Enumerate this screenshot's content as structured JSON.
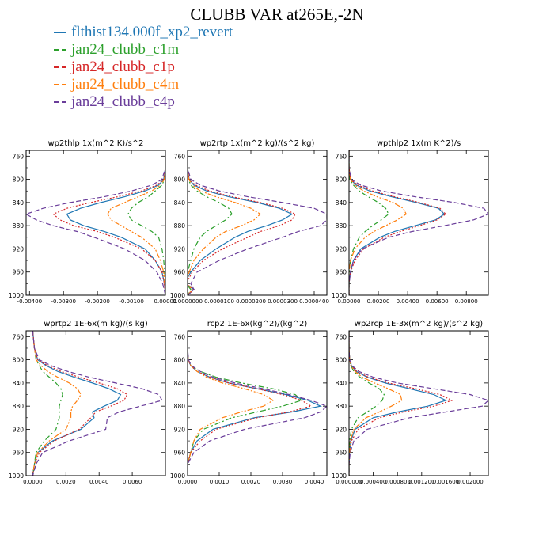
{
  "title": "CLUBB VAR at265E,-2N",
  "colors": {
    "flthist134.000f_xp2_revert": "#1f77b4",
    "jan24_clubb_c1m": "#2ca02c",
    "jan24_clubb_c1p": "#d62728",
    "jan24_clubb_c4m": "#ff7f0e",
    "jan24_clubb_c4p": "#6a3d9a"
  },
  "legend": [
    {
      "name": "flthist134.000f_xp2_revert",
      "style": "solid"
    },
    {
      "name": "jan24_clubb_c1m",
      "style": "dash-dot"
    },
    {
      "name": "jan24_clubb_c1p",
      "style": "dotted"
    },
    {
      "name": "jan24_clubb_c4m",
      "style": "dash-dot-dot"
    },
    {
      "name": "jan24_clubb_c4p",
      "style": "dashed"
    }
  ],
  "chart_data": [
    {
      "type": "line",
      "title": "wp2thlp   1x(m^2 K)/s^2",
      "ylim": [
        1000,
        750
      ],
      "yticks": [
        760,
        800,
        840,
        880,
        920,
        960,
        1000
      ],
      "xlim": [
        -0.0041,
        0.0
      ],
      "xticks": [
        -0.004,
        -0.003,
        -0.002,
        -0.001,
        0.0
      ],
      "xticklabels": [
        "-0.00400",
        "-0.00300",
        "-0.00200",
        "-0.00100",
        "0.00000"
      ],
      "y": [
        750,
        780,
        800,
        810,
        820,
        830,
        840,
        850,
        860,
        870,
        880,
        890,
        900,
        920,
        940,
        960,
        980,
        1000
      ],
      "series": [
        {
          "name": "flthist134.000f_xp2_revert",
          "x": [
            0,
            0,
            -5e-05,
            -0.0002,
            -0.0006,
            -0.0012,
            -0.0019,
            -0.0025,
            -0.0029,
            -0.0028,
            -0.0024,
            -0.0018,
            -0.0013,
            -0.0006,
            -0.0003,
            -0.0001,
            -3e-05,
            0
          ]
        },
        {
          "name": "jan24_clubb_c1m",
          "x": [
            0,
            0,
            -3e-05,
            -0.0001,
            -0.0003,
            -0.0005,
            -0.0008,
            -0.001,
            -0.0011,
            -0.001,
            -0.0007,
            -0.0004,
            -0.0002,
            -0.0001,
            -5e-05,
            -2e-05,
            -1e-05,
            0
          ]
        },
        {
          "name": "jan24_clubb_c1p",
          "x": [
            0,
            0,
            -5e-05,
            -0.00025,
            -0.0007,
            -0.0014,
            -0.0022,
            -0.0029,
            -0.0033,
            -0.0031,
            -0.0027,
            -0.002,
            -0.0015,
            -0.0007,
            -0.0003,
            -0.0001,
            -3e-05,
            0
          ]
        },
        {
          "name": "jan24_clubb_c4m",
          "x": [
            0,
            0,
            -3e-05,
            -0.00015,
            -0.0004,
            -0.0008,
            -0.0012,
            -0.0016,
            -0.0017,
            -0.0016,
            -0.0013,
            -0.001,
            -0.0007,
            -0.0003,
            -0.00015,
            -5e-05,
            -2e-05,
            0
          ]
        },
        {
          "name": "jan24_clubb_c4p",
          "x": [
            0,
            0,
            -0.0001,
            -0.0004,
            -0.001,
            -0.0018,
            -0.0028,
            -0.0036,
            -0.0041,
            -0.0038,
            -0.0033,
            -0.0026,
            -0.0021,
            -0.0012,
            -0.0006,
            -0.00025,
            -8e-05,
            0
          ]
        }
      ]
    },
    {
      "type": "line",
      "title": "wp2rtp   1x(m^2 kg)/(s^2 kg)",
      "ylim": [
        1000,
        750
      ],
      "yticks": [
        760,
        800,
        840,
        880,
        920,
        960,
        1000
      ],
      "xlim": [
        0.0,
        4.4e-05
      ],
      "xticks": [
        0,
        1e-05,
        2e-05,
        3e-05,
        4e-05
      ],
      "xticklabels": [
        "0.0000000",
        "0.0000100",
        "0.0000200",
        "0.0000300",
        "0.0000400"
      ],
      "y": [
        750,
        780,
        800,
        810,
        820,
        830,
        840,
        850,
        860,
        870,
        880,
        890,
        900,
        920,
        940,
        960,
        980,
        990,
        1000
      ],
      "series": [
        {
          "name": "flthist134.000f_xp2_revert",
          "x": [
            0,
            0,
            5e-07,
            2e-06,
            6e-06,
            1.3e-05,
            2.2e-05,
            2.9e-05,
            3.3e-05,
            3e-05,
            2.5e-05,
            1.9e-05,
            1.5e-05,
            9e-06,
            4e-06,
            1e-06,
            -1e-06,
            2e-06,
            0
          ]
        },
        {
          "name": "jan24_clubb_c1m",
          "x": [
            0,
            0,
            3e-07,
            1e-06,
            3e-06,
            6e-06,
            1e-05,
            1.3e-05,
            1.4e-05,
            1.2e-05,
            9e-06,
            6e-06,
            4e-06,
            2e-06,
            1e-06,
            0,
            -5e-07,
            1e-06,
            0
          ]
        },
        {
          "name": "jan24_clubb_c1p",
          "x": [
            0,
            0,
            5e-07,
            2.5e-06,
            7e-06,
            1.4e-05,
            2.3e-05,
            3e-05,
            3.4e-05,
            3.3e-05,
            2.9e-05,
            2.3e-05,
            1.9e-05,
            1.1e-05,
            5e-06,
            1.5e-06,
            -5e-07,
            2e-06,
            0
          ]
        },
        {
          "name": "jan24_clubb_c4m",
          "x": [
            0,
            0,
            4e-07,
            1.5e-06,
            4e-06,
            9e-06,
            1.5e-05,
            2e-05,
            2.3e-05,
            2.1e-05,
            1.7e-05,
            1.2e-05,
            9e-06,
            5e-06,
            2e-06,
            5e-07,
            -5e-07,
            1.5e-06,
            0
          ]
        },
        {
          "name": "jan24_clubb_c4p",
          "x": [
            0,
            0,
            1e-06,
            4e-06,
            1e-05,
            1.9e-05,
            3e-05,
            4e-05,
            4.4e-05,
            4.4e-05,
            4.2e-05,
            3.5e-05,
            3e-05,
            1.9e-05,
            1e-05,
            3e-06,
            1e-06,
            2e-06,
            0
          ]
        }
      ]
    },
    {
      "type": "line",
      "title": "wpthlp2   1x(m K^2)/s",
      "ylim": [
        1000,
        750
      ],
      "yticks": [
        760,
        800,
        840,
        880,
        920,
        960,
        1000
      ],
      "xlim": [
        0.0,
        0.0095
      ],
      "xticks": [
        0,
        0.002,
        0.004,
        0.006,
        0.008
      ],
      "xticklabels": [
        "0.00000",
        "0.00200",
        "0.00400",
        "0.00600",
        "0.00800"
      ],
      "y": [
        750,
        780,
        800,
        810,
        820,
        830,
        840,
        850,
        860,
        870,
        880,
        890,
        900,
        920,
        940,
        960,
        980,
        1000
      ],
      "series": [
        {
          "name": "flthist134.000f_xp2_revert",
          "x": [
            0,
            0,
            0.0001,
            0.0005,
            0.0014,
            0.0029,
            0.0046,
            0.0061,
            0.0065,
            0.0059,
            0.0045,
            0.0031,
            0.0021,
            0.0008,
            0.0003,
            0.0001,
            0,
            0
          ]
        },
        {
          "name": "jan24_clubb_c1m",
          "x": [
            0,
            0,
            5e-05,
            0.0003,
            0.0007,
            0.0013,
            0.002,
            0.0025,
            0.0027,
            0.0022,
            0.0016,
            0.0011,
            0.0007,
            0.0003,
            0.0001,
            0,
            0,
            0
          ]
        },
        {
          "name": "jan24_clubb_c1p",
          "x": [
            0,
            0,
            0.0001,
            0.0006,
            0.0016,
            0.0031,
            0.0048,
            0.0062,
            0.0066,
            0.006,
            0.0048,
            0.0035,
            0.0024,
            0.001,
            0.0004,
            0.0001,
            0,
            0
          ]
        },
        {
          "name": "jan24_clubb_c4m",
          "x": [
            0,
            0,
            0.0001,
            0.0004,
            0.001,
            0.0019,
            0.003,
            0.0037,
            0.0039,
            0.0033,
            0.0025,
            0.0017,
            0.0011,
            0.0004,
            0.0001,
            0,
            0,
            0
          ]
        },
        {
          "name": "jan24_clubb_c4p",
          "x": [
            0,
            0,
            0.00015,
            0.0008,
            0.0022,
            0.0045,
            0.0072,
            0.0092,
            0.0095,
            0.0085,
            0.0065,
            0.0043,
            0.0027,
            0.0009,
            0.0003,
            0.0001,
            0,
            0
          ]
        }
      ]
    },
    {
      "type": "line",
      "title": "wprtp2   1E-6x(m kg)/(s kg)",
      "ylim": [
        1000,
        750
      ],
      "yticks": [
        760,
        800,
        840,
        880,
        920,
        960,
        1000
      ],
      "xlim": [
        -0.0004,
        0.008
      ],
      "xticks": [
        0,
        0.002,
        0.004,
        0.006
      ],
      "xticklabels": [
        "0.0000",
        "0.0020",
        "0.0040",
        "0.0060"
      ],
      "y": [
        750,
        780,
        800,
        810,
        820,
        830,
        840,
        850,
        860,
        870,
        880,
        890,
        900,
        920,
        940,
        960,
        980,
        1000
      ],
      "series": [
        {
          "name": "flthist134.000f_xp2_revert",
          "x": [
            0,
            0.0001,
            0.0003,
            0.0008,
            0.0015,
            0.0025,
            0.0036,
            0.0046,
            0.0053,
            0.0051,
            0.0043,
            0.0036,
            0.0037,
            0.0029,
            0.0012,
            0.0003,
            0.0001,
            0
          ]
        },
        {
          "name": "jan24_clubb_c1m",
          "x": [
            0,
            0.0001,
            0.0002,
            0.0004,
            0.0006,
            0.001,
            0.0014,
            0.0017,
            0.0018,
            0.0017,
            0.0016,
            0.0016,
            0.0016,
            0.0014,
            0.0007,
            0.0002,
            0.0001,
            0
          ]
        },
        {
          "name": "jan24_clubb_c1p",
          "x": [
            0,
            0.0001,
            0.0003,
            0.0009,
            0.0017,
            0.0028,
            0.004,
            0.0051,
            0.0057,
            0.0055,
            0.0047,
            0.0038,
            0.0035,
            0.0028,
            0.0013,
            0.0004,
            0.0001,
            0
          ]
        },
        {
          "name": "jan24_clubb_c4m",
          "x": [
            0,
            0.0001,
            0.0002,
            0.0005,
            0.0009,
            0.0015,
            0.0022,
            0.0027,
            0.0029,
            0.0027,
            0.0024,
            0.0023,
            0.0023,
            0.002,
            0.001,
            0.0003,
            0.0001,
            0
          ]
        },
        {
          "name": "jan24_clubb_c4p",
          "x": [
            0,
            0.0001,
            0.0004,
            0.0011,
            0.0021,
            0.0034,
            0.005,
            0.0066,
            0.0076,
            0.0078,
            0.0065,
            0.0052,
            0.0045,
            0.0044,
            0.0022,
            0.0006,
            0.0002,
            0
          ]
        }
      ]
    },
    {
      "type": "line",
      "title": "rcp2   1E-6x(kg^2)/(kg^2)",
      "ylim": [
        1000,
        750
      ],
      "yticks": [
        760,
        800,
        840,
        880,
        920,
        960,
        1000
      ],
      "xlim": [
        0.0,
        0.0044
      ],
      "xticks": [
        0,
        0.001,
        0.002,
        0.003,
        0.004
      ],
      "xticklabels": [
        "0.0000",
        "0.0010",
        "0.0020",
        "0.0030",
        "0.0040"
      ],
      "y": [
        750,
        780,
        800,
        810,
        820,
        830,
        840,
        850,
        860,
        870,
        880,
        890,
        900,
        920,
        940,
        960,
        980,
        1000
      ],
      "series": [
        {
          "name": "flthist134.000f_xp2_revert",
          "x": [
            0,
            0,
            2e-05,
            0.0001,
            0.0003,
            0.0007,
            0.0013,
            0.0022,
            0.0031,
            0.0038,
            0.0042,
            0.0033,
            0.0021,
            0.0008,
            0.0003,
            0.0001,
            0,
            0
          ]
        },
        {
          "name": "jan24_clubb_c1m",
          "x": [
            0,
            0,
            2e-05,
            0.0001,
            0.0004,
            0.0009,
            0.0017,
            0.0027,
            0.0034,
            0.0036,
            0.003,
            0.0022,
            0.0014,
            0.0005,
            0.0002,
            0.0001,
            0,
            0
          ]
        },
        {
          "name": "jan24_clubb_c1p",
          "x": [
            0,
            0,
            2e-05,
            0.0001,
            0.0003,
            0.0007,
            0.0013,
            0.0022,
            0.003,
            0.0036,
            0.0039,
            0.0032,
            0.0022,
            0.0009,
            0.0004,
            0.0001,
            0,
            0
          ]
        },
        {
          "name": "jan24_clubb_c4m",
          "x": [
            0,
            0,
            2e-05,
            0.0001,
            0.0003,
            0.0006,
            0.0011,
            0.0018,
            0.0024,
            0.0027,
            0.0024,
            0.0017,
            0.0011,
            0.0004,
            0.0002,
            0.0001,
            0,
            0
          ]
        },
        {
          "name": "jan24_clubb_c4p",
          "x": [
            0,
            0,
            3e-05,
            0.00012,
            0.0004,
            0.0008,
            0.0015,
            0.0024,
            0.0032,
            0.0039,
            0.0044,
            0.0042,
            0.0037,
            0.0018,
            0.0007,
            0.0002,
            0,
            0
          ]
        }
      ]
    },
    {
      "type": "line",
      "title": "wp2rcp   1E-3x(m^2 kg)/(s^2 kg)",
      "ylim": [
        1000,
        750
      ],
      "yticks": [
        760,
        800,
        840,
        880,
        920,
        960,
        1000
      ],
      "xlim": [
        0.0,
        0.0023
      ],
      "xticks": [
        0,
        0.0004,
        0.0008,
        0.0012,
        0.0016,
        0.002
      ],
      "xticklabels": [
        "0.000000",
        "0.000400",
        "0.000800",
        "0.001200",
        "0.001600",
        "0.002000"
      ],
      "y": [
        750,
        780,
        800,
        810,
        820,
        830,
        840,
        850,
        860,
        870,
        880,
        890,
        900,
        920,
        940,
        960,
        980,
        1000
      ],
      "series": [
        {
          "name": "flthist134.000f_xp2_revert",
          "x": [
            0,
            0,
            1e-05,
            4e-05,
            0.00012,
            0.0003,
            0.0006,
            0.001,
            0.0014,
            0.0016,
            0.0013,
            0.0008,
            0.0004,
            0.0001,
            3e-05,
            1e-05,
            0,
            0
          ]
        },
        {
          "name": "jan24_clubb_c1m",
          "x": [
            0,
            0,
            1e-05,
            3e-05,
            8e-05,
            0.00018,
            0.00033,
            0.0005,
            0.00058,
            0.00055,
            0.00045,
            0.0003,
            0.00015,
            4e-05,
            1e-05,
            0,
            0,
            0
          ]
        },
        {
          "name": "jan24_clubb_c1p",
          "x": [
            0,
            0,
            1e-05,
            4e-05,
            0.00013,
            0.00032,
            0.00065,
            0.0011,
            0.0015,
            0.0017,
            0.0014,
            0.0009,
            0.0005,
            0.00015,
            4e-05,
            1e-05,
            0,
            0
          ]
        },
        {
          "name": "jan24_clubb_c4m",
          "x": [
            0,
            0,
            1e-05,
            3e-05,
            0.0001,
            0.00022,
            0.00042,
            0.00065,
            0.00085,
            0.00087,
            0.0007,
            0.0005,
            0.00028,
            8e-05,
            2e-05,
            1e-05,
            0,
            0
          ]
        },
        {
          "name": "jan24_clubb_c4p",
          "x": [
            0,
            0,
            1e-05,
            5e-05,
            0.00016,
            0.0004,
            0.0008,
            0.0014,
            0.002,
            0.0023,
            0.0022,
            0.0016,
            0.001,
            0.0003,
            8e-05,
            2e-05,
            0,
            0
          ]
        }
      ]
    }
  ]
}
